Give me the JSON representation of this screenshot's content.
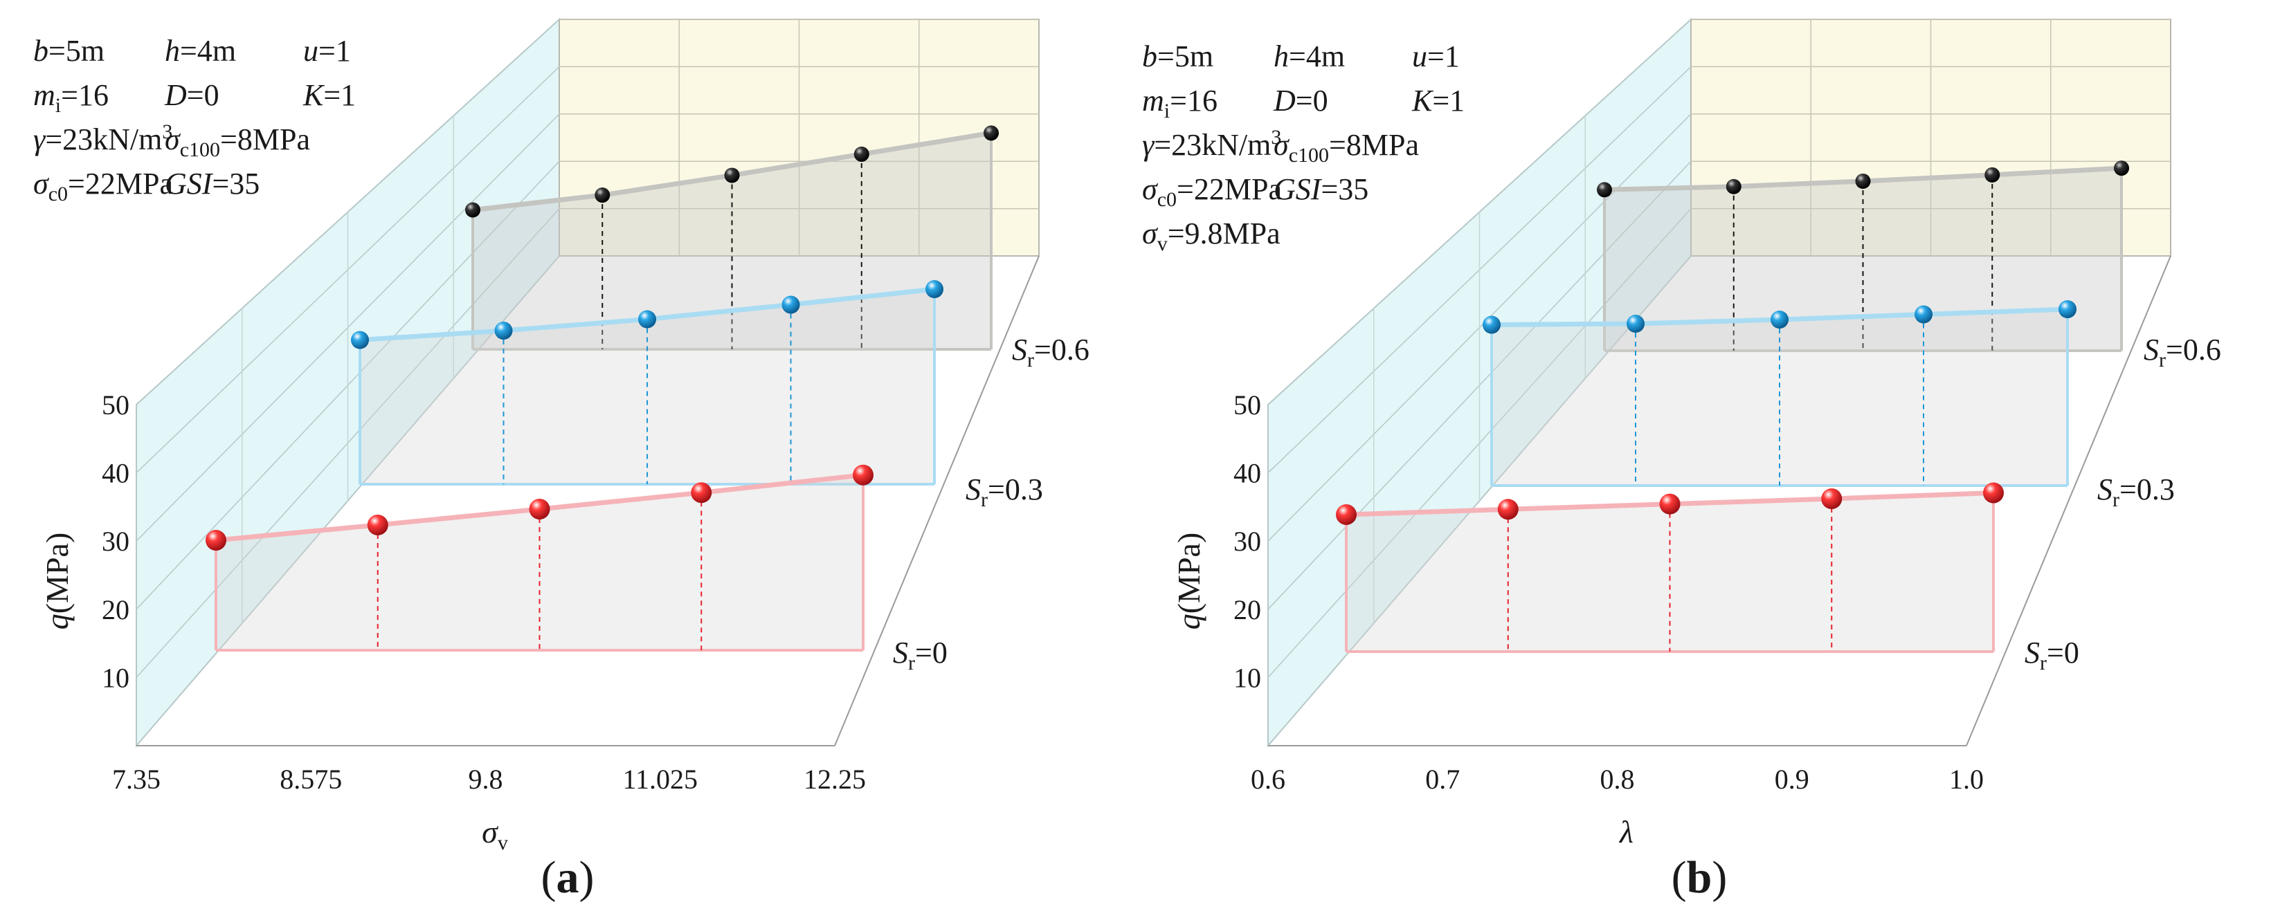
{
  "figure": {
    "panels": [
      {
        "label": "(a)",
        "params": [
          [
            {
              "sym": "b",
              "rest": "=5m"
            },
            {
              "sym": "h",
              "rest": "=4m"
            },
            {
              "sym": "u",
              "rest": "=1"
            }
          ],
          [
            {
              "sym": "m",
              "sub": "i",
              "rest": "=16"
            },
            {
              "sym": "D",
              "rest": "=0"
            },
            {
              "sym": "K",
              "rest": "=1"
            }
          ],
          [
            {
              "sym": "γ",
              "rest": "=23kN/m",
              "sup": "3"
            },
            {
              "sym": "σ",
              "sub": "c100",
              "rest": "=8MPa"
            }
          ],
          [
            {
              "sym": "σ",
              "sub": "c0",
              "rest": "=22MPa"
            },
            {
              "sym": "GSI",
              "rest": "=35"
            }
          ]
        ]
      },
      {
        "label": "(b)",
        "params": [
          [
            {
              "sym": "b",
              "rest": "=5m"
            },
            {
              "sym": "h",
              "rest": "=4m"
            },
            {
              "sym": "u",
              "rest": "=1"
            }
          ],
          [
            {
              "sym": "m",
              "sub": "i",
              "rest": "=16"
            },
            {
              "sym": "D",
              "rest": "=0"
            },
            {
              "sym": "K",
              "rest": "=1"
            }
          ],
          [
            {
              "sym": "γ",
              "rest": "=23kN/m",
              "sup": "3"
            },
            {
              "sym": "σ",
              "sub": "c100",
              "rest": "=8MPa"
            }
          ],
          [
            {
              "sym": "σ",
              "sub": "c0",
              "rest": "=22MPa"
            },
            {
              "sym": "GSI",
              "rest": "=35"
            }
          ],
          [
            {
              "sym": "σ",
              "sub": "v",
              "rest": "=9.8MPa"
            }
          ]
        ]
      }
    ]
  },
  "chart_data": [
    {
      "type": "line",
      "title": "",
      "panel": "(a)",
      "xlabel": "σ",
      "xlabel_sub": "v",
      "ylabel": "q",
      "ylabel_rest": "(MPa)",
      "x": [
        7.35,
        8.575,
        9.8,
        11.025,
        12.25
      ],
      "x_tick_labels": [
        "7.35",
        "8.575",
        "9.8",
        "11.025",
        "12.25"
      ],
      "xlim": [
        7.35,
        12.25
      ],
      "ylim": [
        0,
        50
      ],
      "y_ticks": [
        10,
        20,
        30,
        40,
        50
      ],
      "depth_axis": "S",
      "depth_axis_sub": "r",
      "series": [
        {
          "name": "Sr=0",
          "label_sym": "S",
          "label_sub": "r",
          "label_rest": "=0",
          "color": "#e8202a",
          "line_color": "#f5b3b8",
          "values": [
            18.7,
            21.3,
            24.0,
            26.8,
            29.8
          ]
        },
        {
          "name": "Sr=0.3",
          "label_sym": "S",
          "label_sub": "r",
          "label_rest": "=0.3",
          "color": "#1b95d6",
          "line_color": "#a9dcf3",
          "values": [
            27.8,
            29.6,
            31.8,
            34.6,
            37.6
          ]
        },
        {
          "name": "Sr=0.6",
          "label_sym": "S",
          "label_sub": "r",
          "label_rest": "=0.6",
          "color": "#141414",
          "line_color": "#c4c4c0",
          "values": [
            31.0,
            34.3,
            38.7,
            43.4,
            48.1
          ]
        }
      ]
    },
    {
      "type": "line",
      "title": "",
      "panel": "(b)",
      "xlabel": "λ",
      "xlabel_sub": "",
      "ylabel": "q",
      "ylabel_rest": "(MPa)",
      "x": [
        0.6,
        0.7,
        0.8,
        0.9,
        1.0
      ],
      "x_tick_labels": [
        "0.6",
        "0.7",
        "0.8",
        "0.9",
        "1.0"
      ],
      "xlim": [
        0.6,
        1.0
      ],
      "ylim": [
        0,
        50
      ],
      "y_ticks": [
        10,
        20,
        30,
        40,
        50
      ],
      "depth_axis": "S",
      "depth_axis_sub": "r",
      "series": [
        {
          "name": "Sr=0",
          "label_sym": "S",
          "label_sub": "r",
          "label_rest": "=0",
          "color": "#e8202a",
          "line_color": "#f5b3b8",
          "values": [
            23.3,
            24.2,
            25.1,
            26.0,
            27.0
          ]
        },
        {
          "name": "Sr=0.3",
          "label_sym": "S",
          "label_sub": "r",
          "label_rest": "=0.3",
          "color": "#1b95d6",
          "line_color": "#a9dcf3",
          "values": [
            31.0,
            31.2,
            32.0,
            33.0,
            34.0
          ]
        },
        {
          "name": "Sr=0.6",
          "label_sym": "S",
          "label_sub": "r",
          "label_rest": "=0.6",
          "color": "#141414",
          "line_color": "#c4c4c0",
          "values": [
            35.8,
            36.5,
            37.7,
            39.1,
            40.6
          ]
        }
      ]
    }
  ]
}
